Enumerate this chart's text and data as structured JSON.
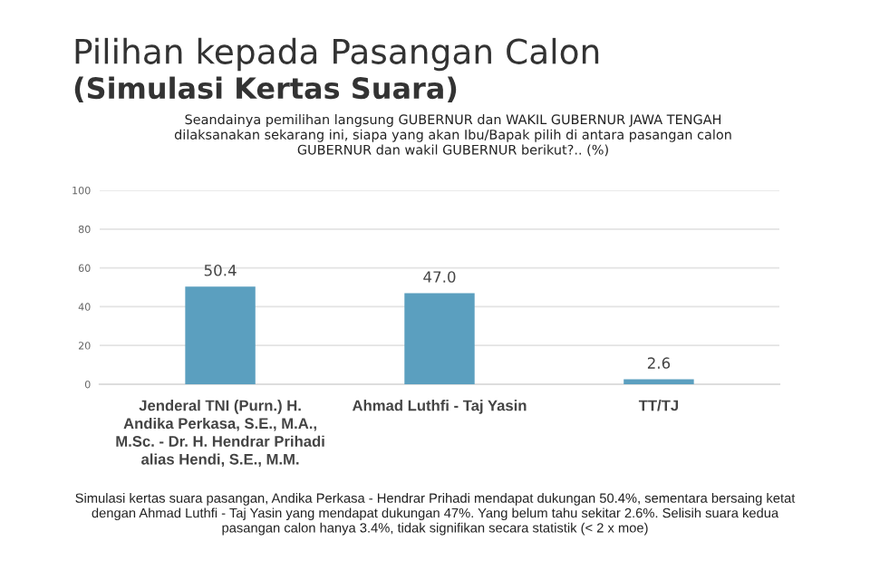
{
  "chart_data": {
    "type": "bar",
    "title": "Pilihan kepada Pasangan Calon",
    "subtitle": "(Simulasi Kertas Suara)",
    "annotations": [
      "Seandainya pemilihan langsung GUBERNUR dan WAKIL GUBERNUR JAWA TENGAH dilaksanakan sekarang ini, siapa yang akan Ibu/Bapak pilih di antara pasangan calon GUBERNUR dan wakil GUBERNUR berikut?.. (%)",
      "Simulasi kertas suara pasangan, Andika Perkasa - Hendrar Prihadi mendapat dukungan 50.4%, sementara bersaing ketat dengan Ahmad Luthfi - Taj Yasin yang mendapat dukungan 47%. Yang belum tahu sekitar 2.6%. Selisih suara kedua pasangan calon hanya 3.4%, tidak signifikan secara statistik (< 2 x moe)"
    ],
    "categories": [
      "Jenderal TNI (Purn.) H. Andika Perkasa, S.E., M.A., M.Sc. - Dr. H. Hendrar Prihadi alias Hendi, S.E., M.M.",
      "Ahmad Luthfi - Taj Yasin",
      "TT/TJ"
    ],
    "values": [
      50.4,
      47.0,
      2.6
    ],
    "value_labels": [
      "50.4",
      "47.0",
      "2.6"
    ],
    "color": "#5b9fbf",
    "ylim": [
      0,
      100
    ],
    "yticks": [
      0,
      20,
      40,
      60,
      80,
      100
    ],
    "grid": "y"
  }
}
